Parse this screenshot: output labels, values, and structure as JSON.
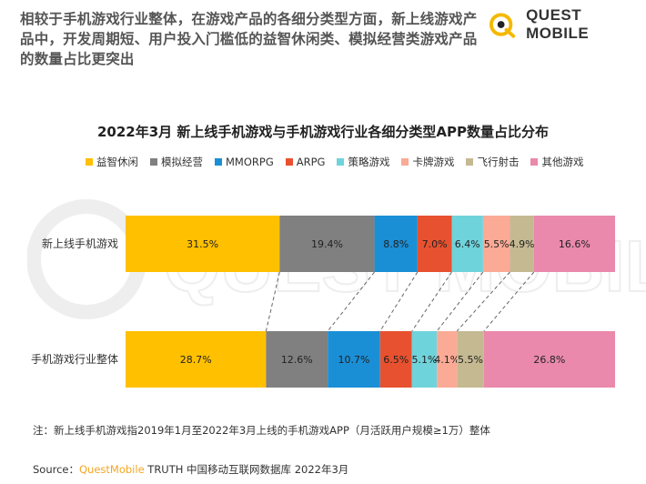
{
  "headline": "相较于手机游戏行业整体，在游戏产品的各细分类型方面，新上线游戏产品中，开发周期短、用户投入门槛低的益智休闲类、模拟经营类游戏产品的数量占比更突出",
  "logo": {
    "text": "QUEST MOBILE",
    "watermark_text": "QUEST MOBILE",
    "accent": "#f5b800"
  },
  "chart_data": {
    "type": "bar",
    "orientation": "horizontal",
    "stacked": "100%",
    "title": "2022年3月 新上线手机游戏与手机游戏行业各细分类型APP数量占比分布",
    "categories": [
      "新上线手机游戏",
      "手机游戏行业整体"
    ],
    "series": [
      {
        "name": "益智休闲",
        "color": "#ffc000",
        "values": [
          31.5,
          28.7
        ]
      },
      {
        "name": "模拟经营",
        "color": "#808080",
        "values": [
          19.4,
          12.6
        ]
      },
      {
        "name": "MMORPG",
        "color": "#1a8fd6",
        "values": [
          8.8,
          10.7
        ]
      },
      {
        "name": "ARPG",
        "color": "#e8512f",
        "values": [
          7.0,
          6.5
        ]
      },
      {
        "name": "策略游戏",
        "color": "#6fd3dc",
        "values": [
          6.4,
          5.1
        ]
      },
      {
        "name": "卡牌游戏",
        "color": "#fbaa96",
        "values": [
          5.5,
          4.1
        ]
      },
      {
        "name": "飞行射击",
        "color": "#c5b992",
        "values": [
          4.9,
          5.5
        ]
      },
      {
        "name": "其他游戏",
        "color": "#ea89ab",
        "values": [
          16.6,
          26.8
        ]
      }
    ],
    "value_format": "percent_one_decimal",
    "legend_position": "top",
    "connector_lines": "dashed",
    "grid": false
  },
  "footnote": "注：新上线手机游戏指2019年1月至2022年3月上线的手机游戏APP（月活跃用户规模≥1万）整体",
  "source": {
    "prefix": "Source：",
    "brand": "QuestMobile",
    "rest": " TRUTH 中国移动互联网数据库 2022年3月"
  }
}
